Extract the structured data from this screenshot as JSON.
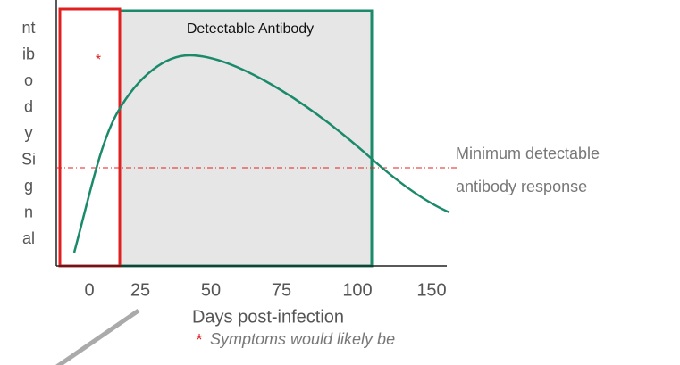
{
  "y_axis_label_lines": [
    "nt",
    "ib",
    "o",
    "d",
    "y",
    "Si",
    "g",
    "n",
    "al"
  ],
  "x_tick_labels": [
    0,
    25,
    50,
    75,
    100,
    150
  ],
  "x_axis_label": "Days post-infection",
  "box_label": "Detectable Antibody",
  "symptom_marker": "*",
  "threshold_label_lines": [
    "Minimum detectable",
    "antibody response"
  ],
  "footnote": {
    "marker": "*",
    "text": "Symptoms would likely be"
  }
}
